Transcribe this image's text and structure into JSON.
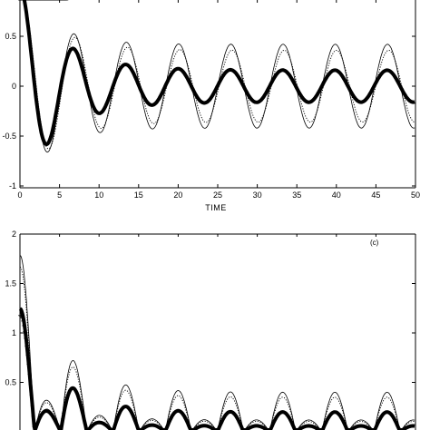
{
  "chart_data": [
    {
      "type": "line",
      "panel_label": "",
      "xlabel": "TIME",
      "ylabel": "",
      "xlim": [
        0,
        50
      ],
      "ylim": [
        -1,
        0.8
      ],
      "x_ticks": [
        "0",
        "5",
        "10",
        "15",
        "20",
        "25",
        "30",
        "35",
        "40",
        "45",
        "50"
      ],
      "y_ticks": [
        "-1",
        "-0.5",
        "0",
        "0.5"
      ],
      "series": [
        {
          "style": "thin-solid",
          "amplitude": 1.0,
          "decay": 0.6,
          "period": 6.6,
          "phase": 0.0
        },
        {
          "style": "dotted",
          "amplitude": 0.95,
          "decay": 0.55,
          "period": 6.6,
          "phase": 0.15
        },
        {
          "style": "thick-solid",
          "amplitude": 1.0,
          "decay": 0.2,
          "period": 6.6,
          "phase": -0.05,
          "steady_amplitude": 0.16
        },
        {
          "style": "plus-markers",
          "x_range": [
            0,
            6
          ],
          "amplitude": 1.0,
          "period": 6.6,
          "phase": 0.0
        }
      ]
    },
    {
      "type": "line",
      "panel_label": "(c)",
      "xlabel": "",
      "ylabel": "",
      "xlim": [
        0,
        50
      ],
      "ylim": [
        0,
        2
      ],
      "x_ticks": [],
      "y_ticks": [
        "0.5",
        "1",
        "1.5",
        "2"
      ],
      "series": [
        {
          "style": "thin-solid",
          "peak_first": 1.82,
          "steady_peak": 0.4,
          "period": 6.6
        },
        {
          "style": "dotted",
          "peak_first": 1.7,
          "steady_peak": 0.35,
          "period": 6.6
        },
        {
          "style": "thick-solid",
          "peak_first": 1.27,
          "steady_peak": 0.2,
          "period": 6.6
        },
        {
          "style": "plus-markers",
          "x_range": [
            0,
            6
          ],
          "peak_first": 1.2,
          "period": 6.6
        }
      ]
    }
  ]
}
